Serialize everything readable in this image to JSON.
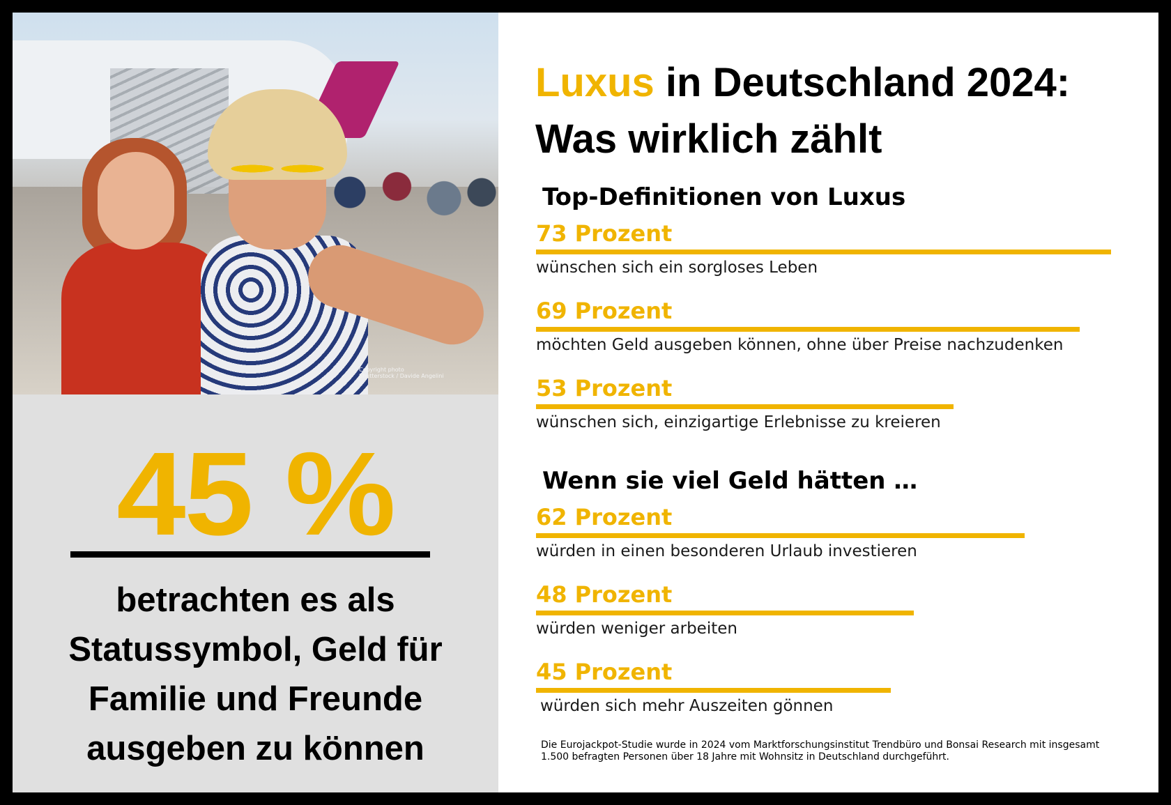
{
  "photo": {
    "credit_line1": "Copyright photo",
    "credit_line2": "Shutterstock / Davide Angelini"
  },
  "highlight": {
    "value": "45 %",
    "caption": "betrachten es als\nStatussymbol, Geld für\nFamilie und Freunde\nausgeben zu können"
  },
  "title": {
    "highlight_word": "Luxus",
    "rest_line1": " in Deutschland 2024:",
    "line2": "Was wirklich zählt"
  },
  "sections": [
    {
      "title": "Top-Definitionen von Luxus",
      "items": [
        {
          "label": "73 Prozent",
          "value": 73,
          "desc": "wünschen sich ein sorgloses Leben"
        },
        {
          "label": "69 Prozent",
          "value": 69,
          "desc": "möchten Geld ausgeben können, ohne über Preise nachzudenken"
        },
        {
          "label": "53 Prozent",
          "value": 53,
          "desc": "wünschen sich, einzigartige Erlebnisse zu kreieren"
        }
      ]
    },
    {
      "title": "Wenn sie viel Geld hätten …",
      "items": [
        {
          "label": "62 Prozent",
          "value": 62,
          "desc": "würden in einen besonderen Urlaub investieren"
        },
        {
          "label": "48 Prozent",
          "value": 48,
          "desc": "würden weniger arbeiten"
        },
        {
          "label": "45 Prozent",
          "value": 45,
          "desc": "würden sich mehr Auszeiten gönnen"
        }
      ]
    }
  ],
  "footnote": "Die Eurojackpot-Studie wurde in 2024 vom Marktforschungsinstitut Trendbüro und Bonsai Research mit insgesamt 1.500 befragten Personen über 18 Jahre mit Wohnsitz in Deutschland durchgeführt.",
  "colors": {
    "accent": "#f0b400",
    "panel": "#e0e0e0",
    "text": "#000000"
  },
  "chart_data": {
    "type": "bar",
    "title": "Luxus in Deutschland 2024: Was wirklich zählt",
    "series": [
      {
        "name": "Top-Definitionen von Luxus",
        "categories": [
          "wünschen sich ein sorgloses Leben",
          "möchten Geld ausgeben können, ohne über Preise nachzudenken",
          "wünschen sich, einzigartige Erlebnisse zu kreieren"
        ],
        "values": [
          73,
          69,
          53
        ]
      },
      {
        "name": "Wenn sie viel Geld hätten …",
        "categories": [
          "würden in einen besonderen Urlaub investieren",
          "würden weniger arbeiten",
          "würden sich mehr Auszeiten gönnen"
        ],
        "values": [
          62,
          48,
          45
        ]
      }
    ],
    "highlight_value": 45,
    "unit": "Prozent"
  }
}
